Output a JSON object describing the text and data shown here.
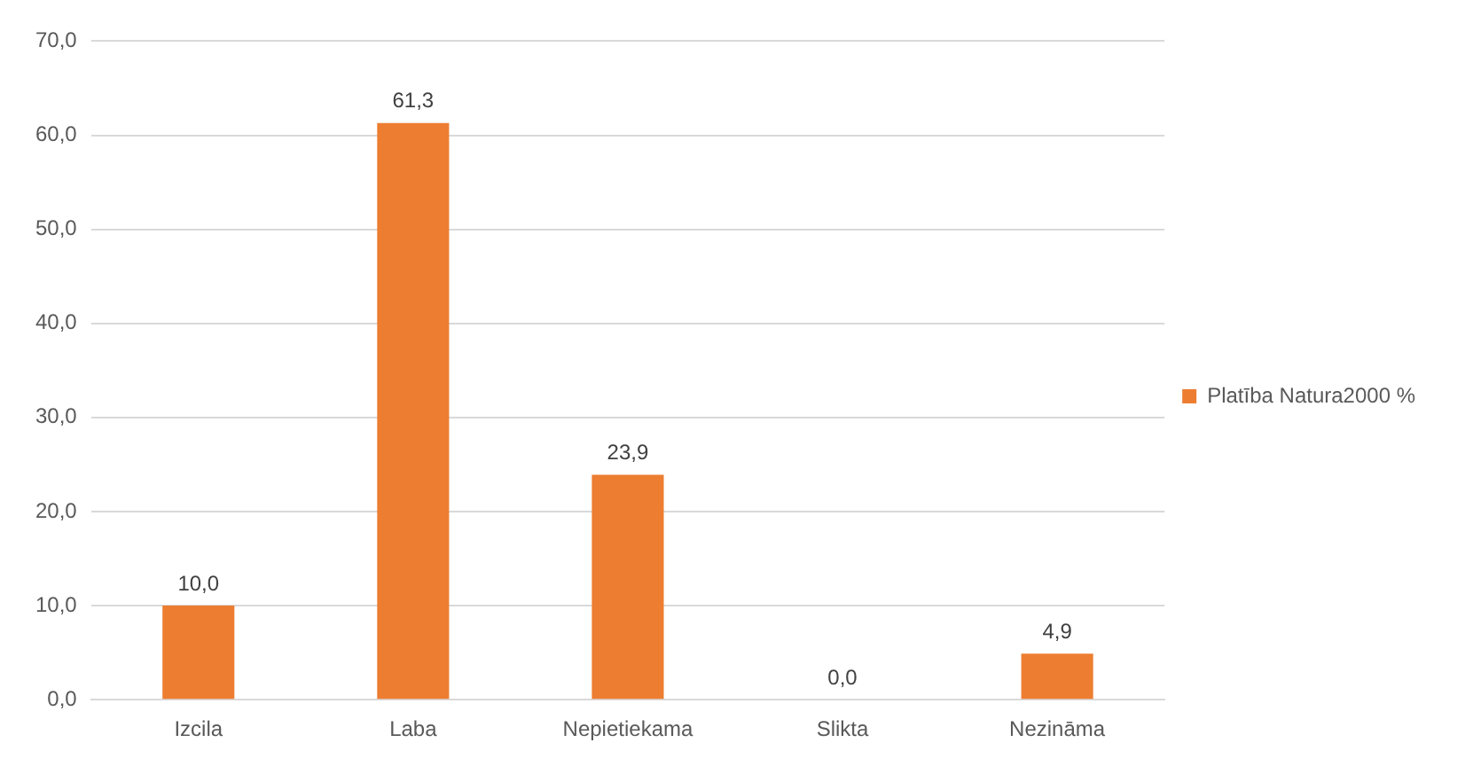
{
  "chart_data": {
    "type": "bar",
    "categories": [
      "Izcila",
      "Laba",
      "Nepietiekama",
      "Slikta",
      "Nezināma"
    ],
    "series": [
      {
        "name": "Platība Natura2000 %",
        "color": "#ed7d31",
        "values": [
          10.0,
          61.3,
          23.9,
          0.0,
          4.9
        ],
        "value_labels": [
          "10,0",
          "61,3",
          "23,9",
          "0,0",
          "4,9"
        ]
      }
    ],
    "ylim": [
      0,
      70
    ],
    "yticks": [
      {
        "value": 0,
        "label": "0,0"
      },
      {
        "value": 10,
        "label": "10,0"
      },
      {
        "value": 20,
        "label": "20,0"
      },
      {
        "value": 30,
        "label": "30,0"
      },
      {
        "value": 40,
        "label": "40,0"
      },
      {
        "value": 50,
        "label": "50,0"
      },
      {
        "value": 60,
        "label": "60,0"
      },
      {
        "value": 70,
        "label": "70,0"
      }
    ],
    "grid": "y",
    "legend": "right"
  }
}
